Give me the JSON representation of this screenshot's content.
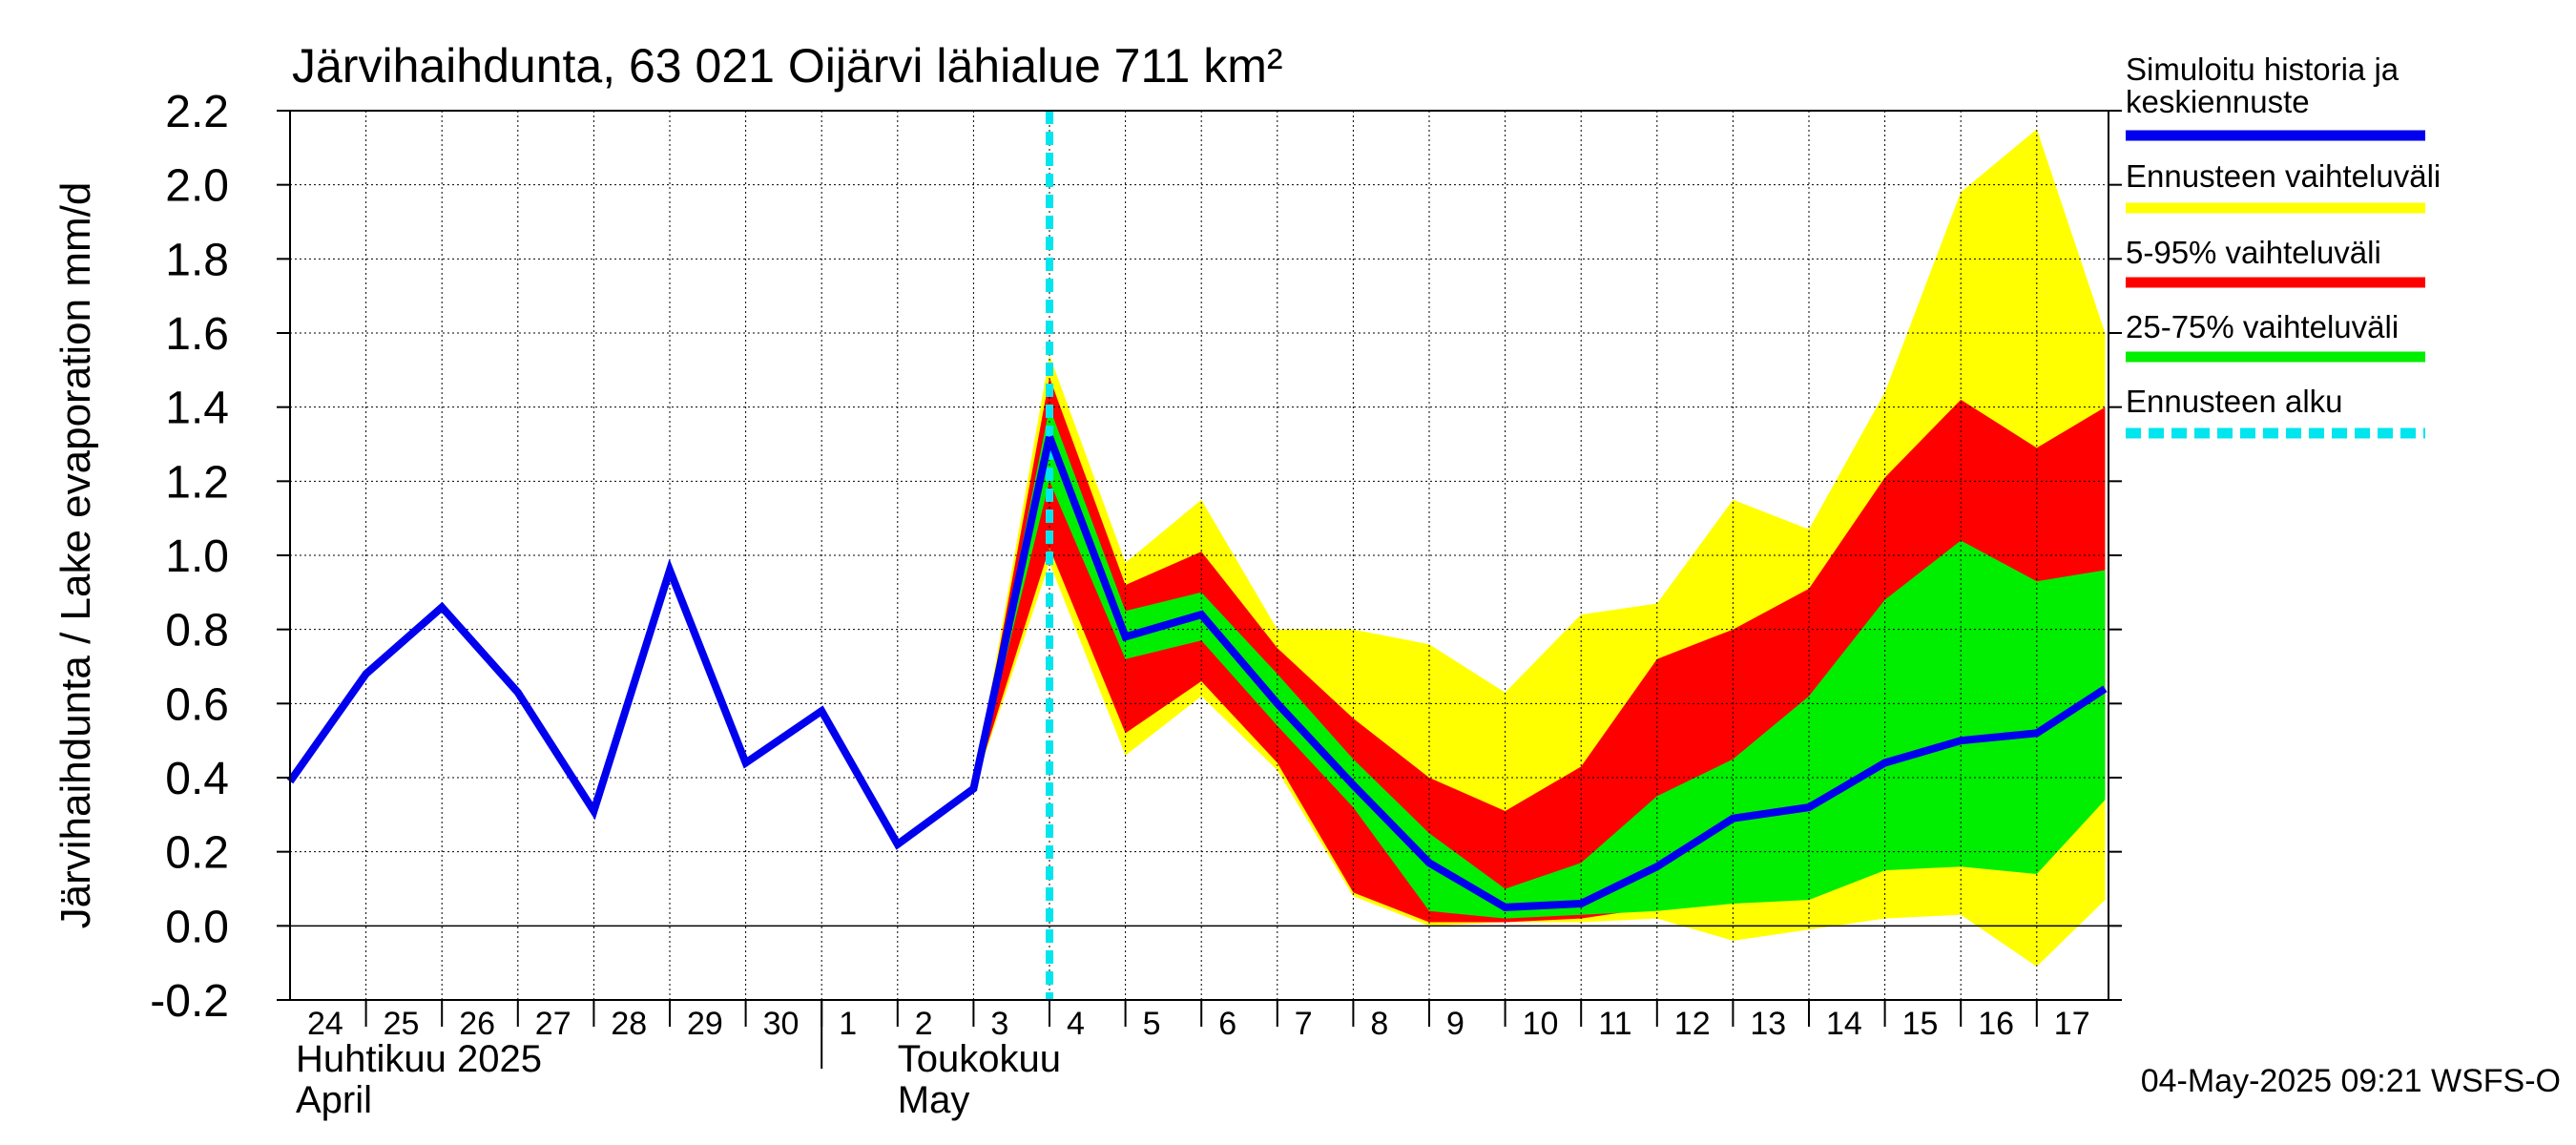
{
  "chart_data": {
    "type": "area",
    "title": "Järvihaihdunta, 63 021 Oijärvi lähialue 711 km²",
    "ylabel": "Järvihaihdunta / Lake evaporation   mm/d",
    "ylim": [
      -0.2,
      2.2
    ],
    "yticks": [
      "-0.2",
      "0.0",
      "0.2",
      "0.4",
      "0.6",
      "0.8",
      "1.0",
      "1.2",
      "1.4",
      "1.6",
      "1.8",
      "2.0",
      "2.2"
    ],
    "x_tick_labels": [
      "24",
      "25",
      "26",
      "27",
      "28",
      "29",
      "30",
      "1",
      "2",
      "3",
      "4",
      "5",
      "6",
      "7",
      "8",
      "9",
      "10",
      "11",
      "12",
      "13",
      "14",
      "15",
      "16",
      "17"
    ],
    "month_labels": [
      {
        "fi": "Huhtikuu  2025",
        "en": "April"
      },
      {
        "fi": "Toukokuu",
        "en": "May"
      }
    ],
    "grid": true,
    "forecast_start_x": 10,
    "legend_position": "right",
    "legend": [
      {
        "label": "Simuloitu historia ja keskiennuste",
        "color": "#0000ee",
        "style": "solid"
      },
      {
        "label": "Ennusteen vaihteluväli",
        "color": "#ffff00",
        "style": "solid"
      },
      {
        "label": "5-95% vaihteluväli",
        "color": "#ff0000",
        "style": "solid"
      },
      {
        "label": "25-75% vaihteluväli",
        "color": "#00ee00",
        "style": "solid"
      },
      {
        "label": "Ennusteen alku",
        "color": "#00e5ee",
        "style": "dashed"
      }
    ],
    "history": {
      "x": [
        0,
        1,
        2,
        3,
        4,
        5,
        6,
        7,
        8,
        9,
        10
      ],
      "y": [
        0.39,
        0.68,
        0.86,
        0.63,
        0.31,
        0.96,
        0.44,
        0.58,
        0.22,
        0.37,
        1.32
      ]
    },
    "forecast_median": {
      "x": [
        10,
        11,
        12,
        13,
        14,
        15,
        16,
        17,
        18,
        19,
        20,
        21,
        22,
        23,
        23.9
      ],
      "y": [
        1.32,
        0.78,
        0.84,
        0.6,
        0.38,
        0.17,
        0.05,
        0.06,
        0.16,
        0.29,
        0.32,
        0.44,
        0.5,
        0.52,
        0.64
      ]
    },
    "bands": {
      "x": [
        9,
        10,
        11,
        12,
        13,
        14,
        15,
        16,
        17,
        18,
        19,
        20,
        21,
        22,
        23,
        23.9
      ],
      "range_max": [
        0.37,
        1.54,
        0.98,
        1.15,
        0.8,
        0.8,
        0.76,
        0.63,
        0.84,
        0.87,
        1.15,
        1.07,
        1.44,
        1.98,
        2.15,
        1.6
      ],
      "range_min": [
        0.37,
        0.98,
        0.46,
        0.62,
        0.42,
        0.08,
        0.0,
        0.01,
        0.01,
        0.02,
        -0.04,
        -0.01,
        0.02,
        0.03,
        -0.11,
        0.07
      ],
      "p95": [
        0.37,
        1.48,
        0.92,
        1.01,
        0.75,
        0.56,
        0.4,
        0.31,
        0.43,
        0.72,
        0.8,
        0.91,
        1.21,
        1.42,
        1.29,
        1.4
      ],
      "p5": [
        0.37,
        1.02,
        0.52,
        0.66,
        0.44,
        0.09,
        0.01,
        0.01,
        0.02,
        0.05,
        0.1,
        0.1,
        0.17,
        0.18,
        0.16,
        0.35
      ],
      "p75": [
        0.37,
        1.4,
        0.85,
        0.9,
        0.68,
        0.45,
        0.25,
        0.1,
        0.17,
        0.35,
        0.45,
        0.62,
        0.88,
        1.04,
        0.93,
        0.96
      ],
      "p25": [
        0.37,
        1.2,
        0.72,
        0.77,
        0.54,
        0.32,
        0.04,
        0.02,
        0.03,
        0.04,
        0.06,
        0.07,
        0.15,
        0.16,
        0.14,
        0.34
      ]
    },
    "timestamp": "04-May-2025 09:21 WSFS-O"
  }
}
